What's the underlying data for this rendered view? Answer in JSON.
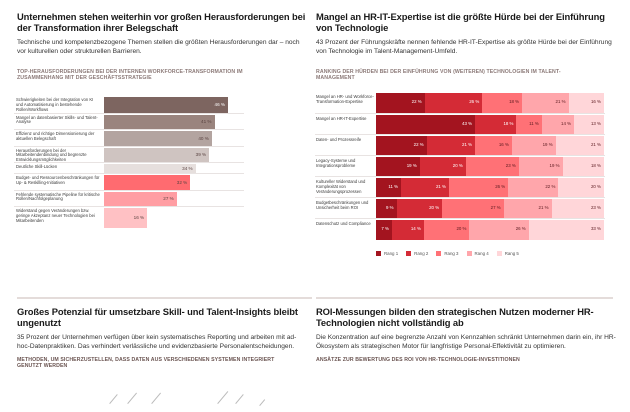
{
  "sections": {
    "top_left": {
      "title": "Unternehmen stehen weiterhin vor großen Herausforderungen bei der Transformation ihrer Belegschaft",
      "lead": "Technische und kompetenzbezogene Themen stellen die größten Herausforderungen dar – noch vor kulturellen oder strukturellen Barrieren.",
      "chart_title": "Top-Herausforderungen bei der internen Workforce-Transformation im Zusammenhang mit der Geschäftsstrategie"
    },
    "top_right": {
      "title": "Mangel an HR-IT-Expertise ist die größte Hürde bei der Einführung von Technologie",
      "lead": "43 Prozent der Führungskräfte nennen fehlende HR-IT-Expertise als größte Hürde bei der Einführung von Technologie im Talent-Management-Umfeld.",
      "chart_title": "Ranking der Hürden bei der Einführung von (weiteren) Technologien im Talent-Management"
    },
    "bottom_left": {
      "title": "Großes Potenzial für umsetzbare Skill- und Talent-Insights bleibt ungenutzt",
      "lead": "35 Prozent der Unternehmen verfügen über kein systematisches Reporting und arbeiten mit ad-hoc-Datenpraktiken. Das verhindert verlässliche und evidenzbasierte Personalentscheidungen.",
      "chart_title": "Methoden, um sicherzustellen, dass Daten aus verschiedenen Systemen integriert genutzt werden"
    },
    "bottom_right": {
      "title": "ROI-Messungen bilden den strategischen Nutzen moderner HR-Technologien nicht vollständig ab",
      "lead": "Die Konzentration auf eine begrenzte Anzahl von Kennzahlen schränkt Unternehmen darin ein, ihr HR-Ökosystem als strategischen Motor für langfristige Personal-Effektivität zu optimieren.",
      "chart_title": "Ansätze zur Bewertung des ROI von HR-Technologie-Investitionen"
    }
  },
  "chart_data": [
    {
      "type": "bar",
      "orientation": "horizontal",
      "title": "Top-Herausforderungen bei der internen Workforce-Transformation im Zusammenhang mit der Geschäftsstrategie",
      "unit": "%",
      "categories": [
        "Schwierigkeiten bei der Integration von KI und Automatisierung in bestehende Rollen/Workflows",
        "Mangel an datenbasierter Skills- und Talent-Analyse",
        "Effizienz und richtige Dimensionierung der aktuellen Belegschaft",
        "Herausforderungen bei der Mitarbeitendenbindung und begrenzte Entwicklungsmöglichkeiten",
        "Deutliche Skill-Lücken",
        "Budget- und Ressourcenbeschränkungen für Up- & Reskilling-Initiativen",
        "Fehlende systematische Pipeline für kritische Rollen/Nachfolgeplanung",
        "Widerstand gegen Veränderungen bzw. geringe Akzeptanz neuer Technologien bei Mitarbeitenden"
      ],
      "values": [
        46,
        41,
        40,
        39,
        34,
        32,
        27,
        16
      ],
      "value_labels": [
        "46 %",
        "41 %",
        "40 %",
        "39 %",
        "34 %",
        "32 %",
        "27 %",
        "16 %"
      ],
      "colors": [
        "#7d6560",
        "#9a847e",
        "#b3a4a0",
        "#cfc4c1",
        "#e6dfdd",
        "#ff6b70",
        "#ff9ea3",
        "#ffc1c4"
      ],
      "light_label": [
        true,
        false,
        false,
        false,
        false,
        false,
        false,
        false
      ],
      "xlim": [
        0,
        46
      ]
    },
    {
      "type": "bar",
      "orientation": "horizontal",
      "stacked": true,
      "title": "Ranking der Hürden bei der Einführung von (weiteren) Technologien im Talent-Management",
      "unit": "%",
      "categories": [
        "Mangel an HR- und Workforce-Transformation-Expertise",
        "Mangel an HR-IT-Expertise",
        "Daten- und Prozessreife",
        "Legacy-Systeme und Integrationsprobleme",
        "Kultureller Widerstand und Komplexität von Veränderungsprozessen",
        "Budgetbeschränkungen und Unsicherheit beim ROI",
        "Datenschutz und Compliance"
      ],
      "series": [
        {
          "name": "Rang 1",
          "color": "#a3141f",
          "values": [
            22,
            43,
            22,
            19,
            11,
            9,
            7
          ]
        },
        {
          "name": "Rang 2",
          "color": "#d42b36",
          "values": [
            26,
            18,
            21,
            20,
            21,
            20,
            14
          ]
        },
        {
          "name": "Rang 3",
          "color": "#ff7176",
          "values": [
            18,
            11,
            16,
            23,
            26,
            27,
            20
          ]
        },
        {
          "name": "Rang 4",
          "color": "#ffa6ab",
          "values": [
            21,
            14,
            19,
            19,
            22,
            21,
            26
          ]
        },
        {
          "name": "Rang 5",
          "color": "#ffd6d9",
          "values": [
            16,
            13,
            21,
            18,
            20,
            23,
            33
          ]
        }
      ],
      "legend": "bottom"
    }
  ]
}
